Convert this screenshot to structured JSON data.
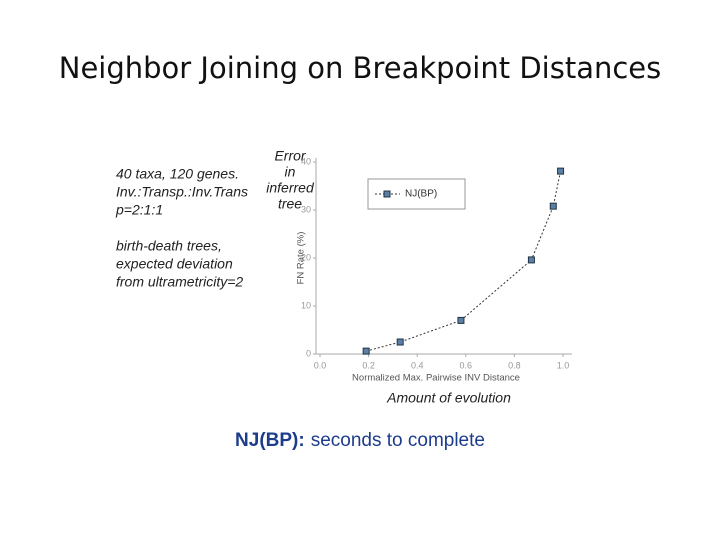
{
  "title": "Neighbor Joining on Breakpoint Distances",
  "notes": {
    "setup": [
      "40 taxa, 120 genes.",
      "Inv.:Transp.:Inv.Trans",
      "p=2:1:1"
    ],
    "trees": [
      "birth-death trees,",
      "expected deviation",
      "from ultrametricity=2"
    ]
  },
  "caption": {
    "method": "NJ(BP):",
    "text": "seconds to complete"
  },
  "chart_data": {
    "type": "line",
    "annotation": [
      "Error",
      "in",
      "inferred",
      "tree"
    ],
    "x_annotation": "Amount of evolution",
    "xlabel": "Normalized Max. Pairwise INV Distance",
    "ylabel": "FN Rate (%)",
    "x": [
      0.19,
      0.33,
      0.58,
      0.87,
      0.96,
      0.99
    ],
    "series": [
      {
        "name": "NJ(BP)",
        "color": "#5b7fa6",
        "values": [
          0.6,
          2.5,
          7,
          19.6,
          30.8,
          38.1
        ]
      }
    ],
    "xlim": [
      0,
      1
    ],
    "xticks": [
      {
        "value": 0,
        "label": "0.0"
      },
      0.2,
      0.4,
      0.6,
      0.8,
      {
        "value": 1,
        "label": "1.0"
      }
    ],
    "ylim": [
      0,
      40
    ],
    "yticks": [
      0,
      10,
      20,
      30,
      40
    ],
    "legend": "top-center"
  }
}
